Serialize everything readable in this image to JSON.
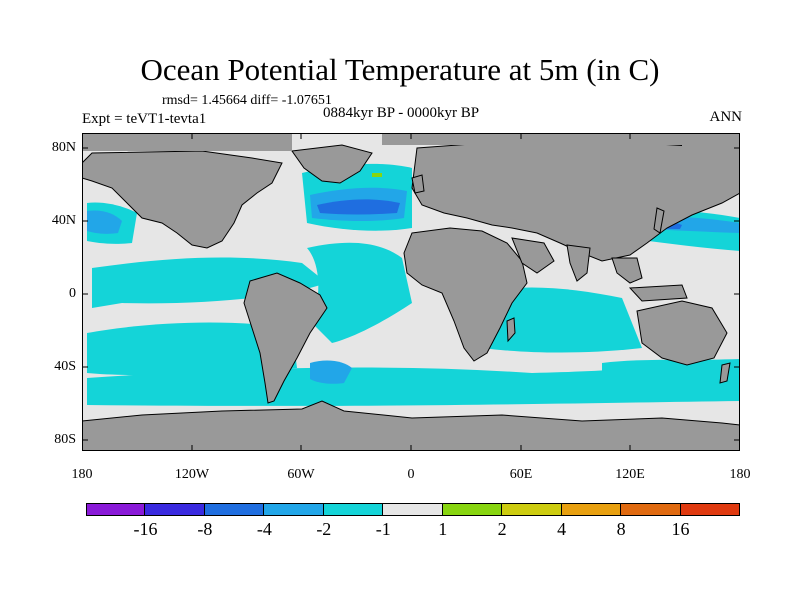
{
  "title": "Ocean Potential Temperature at 5m (in C)",
  "stats_line": "rmsd= 1.45664 diff= -1.07651",
  "experiment": "Expt = teVT1-tevta1",
  "period": "0884kyr BP - 0000kyr BP",
  "season": "ANN",
  "lat_ticks": [
    "80N",
    "40N",
    "0",
    "40S",
    "80S"
  ],
  "lon_ticks": [
    "180",
    "120W",
    "60W",
    "0",
    "60E",
    "120E",
    "180"
  ],
  "colors": {
    "land": "#999999",
    "ocean_neutral": "#e6e6e6",
    "coast": "#000000"
  },
  "legend": {
    "colors": [
      "#8a1ad8",
      "#3a2ae0",
      "#1f6ee0",
      "#22a6e8",
      "#14d4d8",
      "#e6e6e6",
      "#88d510",
      "#cdcc10",
      "#e8a010",
      "#e06a10",
      "#e03a10"
    ],
    "labels": [
      "-16",
      "-8",
      "-4",
      "-2",
      "-1",
      "1",
      "2",
      "4",
      "8",
      "16"
    ]
  }
}
